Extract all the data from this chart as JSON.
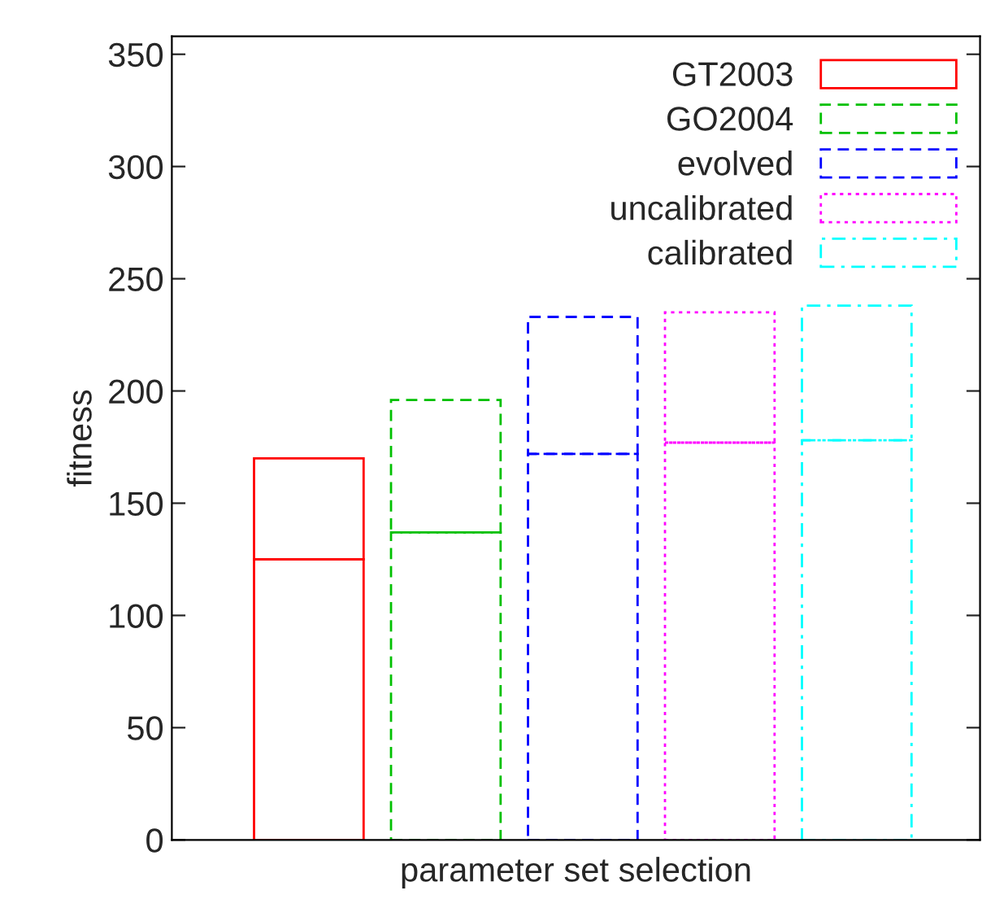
{
  "chart_data": {
    "type": "bar",
    "stacked": true,
    "xlabel": "parameter set selection",
    "ylabel": "fitness",
    "categories": [
      null,
      null,
      null,
      null,
      null
    ],
    "series": [
      {
        "name": "GT2003",
        "color": "#ff0000",
        "line_style": "solid",
        "values": [
          125,
          null,
          null,
          null,
          null
        ]
      },
      {
        "name": "GO2004",
        "color": "#00c000",
        "line_style": "dashed",
        "values": [
          null,
          137,
          null,
          null,
          null
        ]
      },
      {
        "name": "evolved",
        "color": "#0000ff",
        "line_style": "dashed",
        "values": [
          null,
          null,
          172,
          null,
          null
        ]
      },
      {
        "name": "uncalibrated",
        "color": "#ff00ff",
        "line_style": "dotted",
        "values": [
          null,
          null,
          null,
          177,
          null
        ]
      },
      {
        "name": "calibrated",
        "color": "#00ffff",
        "line_style": "dashdot",
        "values": [
          null,
          null,
          null,
          null,
          178
        ]
      },
      {
        "color": "#ff0000",
        "line_style": "solid",
        "values": [
          45,
          null,
          null,
          null,
          null
        ]
      },
      {
        "color": "#00c000",
        "line_style": "dashed",
        "values": [
          null,
          59,
          null,
          null,
          null
        ]
      },
      {
        "color": "#0000ff",
        "line_style": "dashed",
        "values": [
          null,
          null,
          61,
          null,
          null
        ]
      },
      {
        "color": "#ff00ff",
        "line_style": "dotted",
        "values": [
          null,
          null,
          null,
          58,
          null
        ]
      },
      {
        "color": "#00ffff",
        "line_style": "dashdot",
        "values": [
          null,
          null,
          null,
          null,
          60
        ]
      }
    ],
    "ylim": [
      0,
      358
    ],
    "yticks": [
      0,
      50,
      100,
      150,
      200,
      250,
      300,
      350
    ],
    "grid": false,
    "legend": "top right"
  }
}
